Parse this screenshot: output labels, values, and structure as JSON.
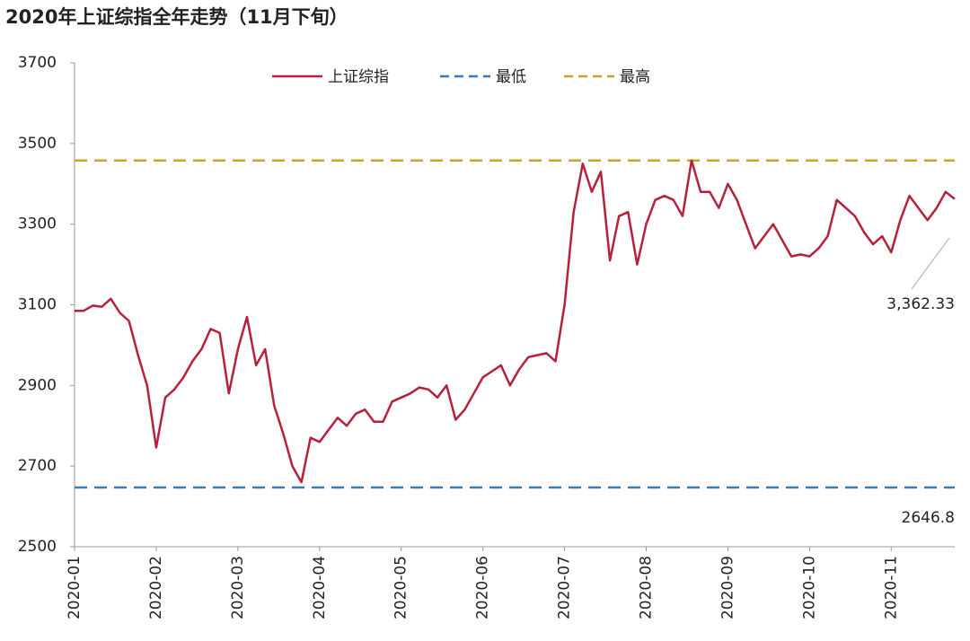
{
  "chart_data": {
    "type": "line",
    "title": "2020年上证综指全年走势（11月下旬）",
    "categories": [
      "2020-01",
      null,
      null,
      null,
      null,
      null,
      null,
      null,
      null,
      "2020-02",
      null,
      null,
      null,
      null,
      null,
      null,
      null,
      null,
      "2020-03",
      null,
      null,
      null,
      null,
      null,
      null,
      null,
      null,
      "2020-04",
      null,
      null,
      null,
      null,
      null,
      null,
      null,
      null,
      "2020-05",
      null,
      null,
      null,
      null,
      null,
      null,
      null,
      null,
      "2020-06",
      null,
      null,
      null,
      null,
      null,
      null,
      null,
      null,
      "2020-07",
      null,
      null,
      null,
      null,
      null,
      null,
      null,
      null,
      "2020-08",
      null,
      null,
      null,
      null,
      null,
      null,
      null,
      null,
      "2020-09",
      null,
      null,
      null,
      null,
      null,
      null,
      null,
      null,
      "2020-10",
      null,
      null,
      null,
      null,
      null,
      null,
      null,
      null,
      "2020-11",
      null,
      null,
      null,
      null,
      null,
      null,
      null
    ],
    "series": [
      {
        "name": "上证综指",
        "color": "#b5213a",
        "values": [
          3085,
          3085,
          3098,
          3095,
          3115,
          3080,
          3060,
          2975,
          2900,
          2746,
          2870,
          2890,
          2920,
          2960,
          2990,
          3040,
          3030,
          2880,
          2990,
          3070,
          2950,
          2990,
          2850,
          2780,
          2700,
          2660,
          2770,
          2760,
          2790,
          2820,
          2800,
          2830,
          2840,
          2810,
          2810,
          2860,
          2870,
          2880,
          2895,
          2890,
          2870,
          2900,
          2815,
          2840,
          2880,
          2920,
          2935,
          2950,
          2900,
          2940,
          2970,
          2975,
          2980,
          2960,
          3100,
          3330,
          3450,
          3380,
          3430,
          3210,
          3320,
          3330,
          3200,
          3300,
          3360,
          3370,
          3360,
          3320,
          3458,
          3380,
          3380,
          3340,
          3400,
          3360,
          3300,
          3240,
          3270,
          3300,
          3260,
          3220,
          3225,
          3220,
          3240,
          3270,
          3360,
          3340,
          3320,
          3280,
          3250,
          3270,
          3230,
          3310,
          3370,
          3340,
          3310,
          3340,
          3380,
          3362.33
        ]
      }
    ],
    "hlines": [
      {
        "name": "最低",
        "value": 2646.8,
        "color": "#3a7ab5",
        "show_label": true
      },
      {
        "name": "最高",
        "value": 3458,
        "color": "#c9a227",
        "show_label": false
      }
    ],
    "annotations": [
      {
        "text": "3,362.33"
      }
    ],
    "ylim": [
      2500,
      3700
    ],
    "yticks": [
      2500,
      2700,
      2900,
      3100,
      3300,
      3500,
      3700
    ]
  }
}
